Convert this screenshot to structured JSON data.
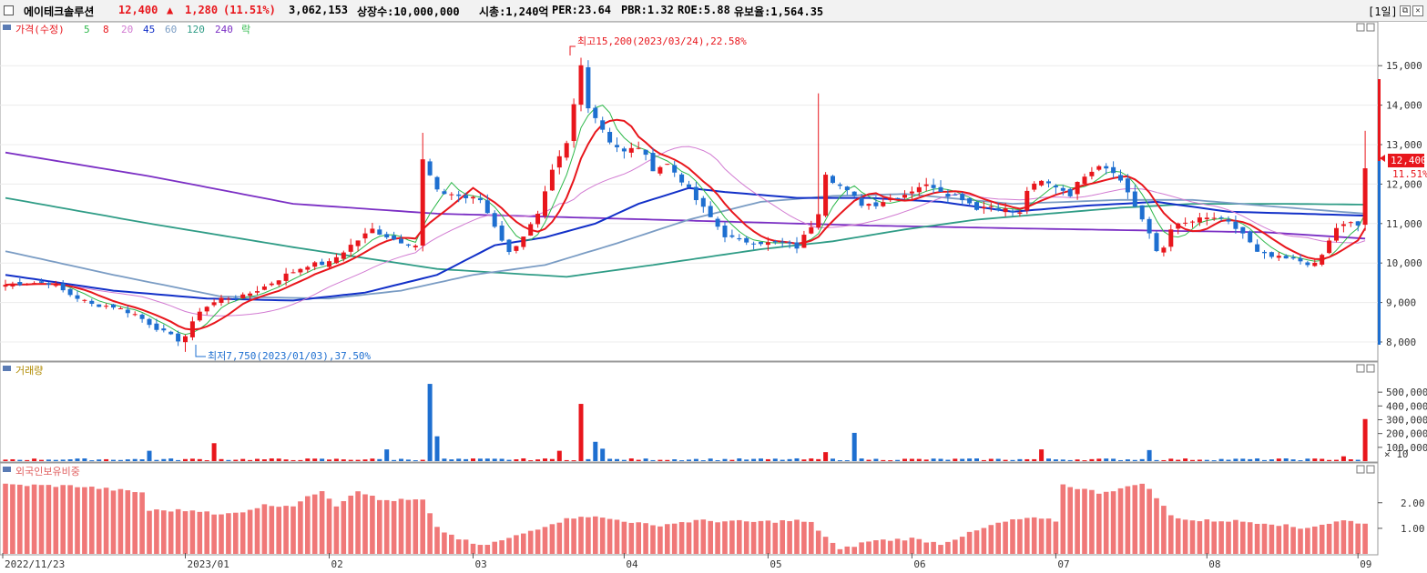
{
  "header": {
    "stock_name": "에이테크솔루션",
    "price": "12,400",
    "change_arrow": "▲",
    "change": "1,280",
    "change_pct": "(11.51%)",
    "volume": "3,062,153",
    "listed_shares": "상장수:10,000,000",
    "market_cap": "시총:1,240억",
    "per": "PER:23.64",
    "pbr": "PBR:1.32",
    "roe": "ROE:5.88",
    "reserve_ratio": "유보율:1,564.35",
    "period_button": "[1일]"
  },
  "colors": {
    "up": "#e8161c",
    "down": "#1e6fd0",
    "ma5": "#2db84a",
    "ma8": "#e8161c",
    "ma20": "#d27bd2",
    "ma45": "#1230c8",
    "ma60": "#7a9cc4",
    "ma120": "#2f9c86",
    "ma240": "#7b2fc4",
    "foreign_bar": "#f07878"
  },
  "chart_data": [
    {
      "type": "candlestick",
      "panel": "price",
      "legend": [
        "가격(수정)",
        "5",
        "8",
        "20",
        "45",
        "60",
        "120",
        "240",
        "락"
      ],
      "yticks": [
        "15,000",
        "14,000",
        "13,000",
        "12,000",
        "11,000",
        "10,000",
        "9,000",
        "8,000"
      ],
      "ylim": [
        7700,
        15650
      ],
      "xlabels": [
        "2022/11/23",
        "2023/01",
        "02",
        "03",
        "04",
        "05",
        "06",
        "07",
        "08",
        "09"
      ],
      "xlabel_days": [
        0,
        25,
        45,
        65,
        86,
        106,
        126,
        146,
        167,
        188
      ],
      "high_annotation": "최고15,200(2023/03/24),22.58%",
      "low_annotation": "최저7,750(2023/01/03),37.50%",
      "current_price_label": "12,400",
      "current_pct_label": "11.51%",
      "close_anchors": [
        [
          0,
          9450
        ],
        [
          3,
          9500
        ],
        [
          6,
          9500
        ],
        [
          9,
          9200
        ],
        [
          12,
          8950
        ],
        [
          15,
          8900
        ],
        [
          18,
          8700
        ],
        [
          21,
          8350
        ],
        [
          24,
          8050
        ],
        [
          25,
          8150
        ],
        [
          27,
          8800
        ],
        [
          30,
          9100
        ],
        [
          33,
          9150
        ],
        [
          36,
          9400
        ],
        [
          39,
          9700
        ],
        [
          42,
          9950
        ],
        [
          45,
          10000
        ],
        [
          48,
          10450
        ],
        [
          51,
          10850
        ],
        [
          54,
          10600
        ],
        [
          57,
          10450
        ],
        [
          58,
          12600
        ],
        [
          60,
          11800
        ],
        [
          62,
          11750
        ],
        [
          64,
          11650
        ],
        [
          66,
          11600
        ],
        [
          68,
          10950
        ],
        [
          70,
          10250
        ],
        [
          72,
          10700
        ],
        [
          74,
          11200
        ],
        [
          76,
          12300
        ],
        [
          78,
          13000
        ],
        [
          80,
          15000
        ],
        [
          81,
          14000
        ],
        [
          82,
          13700
        ],
        [
          84,
          13100
        ],
        [
          86,
          12800
        ],
        [
          88,
          12950
        ],
        [
          90,
          12400
        ],
        [
          92,
          12500
        ],
        [
          94,
          12100
        ],
        [
          96,
          11600
        ],
        [
          98,
          11150
        ],
        [
          100,
          10700
        ],
        [
          102,
          10550
        ],
        [
          104,
          10550
        ],
        [
          106,
          10500
        ],
        [
          108,
          10500
        ],
        [
          110,
          10400
        ],
        [
          112,
          10950
        ],
        [
          113,
          11300
        ],
        [
          114,
          12300
        ],
        [
          115,
          12100
        ],
        [
          117,
          11800
        ],
        [
          119,
          11500
        ],
        [
          121,
          11500
        ],
        [
          123,
          11650
        ],
        [
          125,
          11750
        ],
        [
          127,
          11950
        ],
        [
          129,
          11950
        ],
        [
          131,
          11750
        ],
        [
          133,
          11650
        ],
        [
          135,
          11400
        ],
        [
          137,
          11450
        ],
        [
          139,
          11350
        ],
        [
          141,
          11250
        ],
        [
          142,
          11850
        ],
        [
          144,
          12050
        ],
        [
          146,
          11950
        ],
        [
          148,
          11750
        ],
        [
          150,
          12250
        ],
        [
          152,
          12500
        ],
        [
          154,
          12350
        ],
        [
          156,
          11800
        ],
        [
          158,
          11100
        ],
        [
          160,
          10300
        ],
        [
          161,
          10400
        ],
        [
          162,
          10900
        ],
        [
          164,
          11000
        ],
        [
          166,
          11100
        ],
        [
          168,
          11150
        ],
        [
          170,
          11000
        ],
        [
          172,
          10750
        ],
        [
          174,
          10250
        ],
        [
          176,
          10150
        ],
        [
          178,
          10100
        ],
        [
          180,
          10050
        ],
        [
          182,
          9950
        ],
        [
          183,
          10200
        ],
        [
          185,
          10900
        ],
        [
          187,
          11000
        ],
        [
          188,
          10950
        ],
        [
          189,
          12400
        ]
      ],
      "ma_series": [
        {
          "name": "240",
          "values": [
            [
              0,
              12800
            ],
            [
              20,
              12200
            ],
            [
              40,
              11500
            ],
            [
              60,
              11250
            ],
            [
              80,
              11150
            ],
            [
              100,
              11050
            ],
            [
              120,
              10950
            ],
            [
              140,
              10880
            ],
            [
              160,
              10820
            ],
            [
              175,
              10780
            ],
            [
              189,
              10620
            ]
          ]
        },
        {
          "name": "120",
          "values": [
            [
              0,
              11650
            ],
            [
              20,
              11000
            ],
            [
              40,
              10400
            ],
            [
              60,
              9850
            ],
            [
              78,
              9650
            ],
            [
              90,
              9950
            ],
            [
              105,
              10350
            ],
            [
              115,
              10550
            ],
            [
              125,
              10850
            ],
            [
              135,
              11100
            ],
            [
              145,
              11250
            ],
            [
              155,
              11400
            ],
            [
              165,
              11500
            ],
            [
              178,
              11500
            ],
            [
              189,
              11480
            ]
          ]
        },
        {
          "name": "60",
          "values": [
            [
              0,
              10300
            ],
            [
              15,
              9700
            ],
            [
              30,
              9150
            ],
            [
              45,
              9100
            ],
            [
              55,
              9300
            ],
            [
              65,
              9700
            ],
            [
              75,
              9950
            ],
            [
              85,
              10500
            ],
            [
              95,
              11100
            ],
            [
              105,
              11550
            ],
            [
              115,
              11700
            ],
            [
              125,
              11750
            ],
            [
              140,
              11500
            ],
            [
              155,
              11600
            ],
            [
              165,
              11600
            ],
            [
              175,
              11450
            ],
            [
              189,
              11250
            ]
          ]
        },
        {
          "name": "45",
          "values": [
            [
              0,
              9700
            ],
            [
              15,
              9300
            ],
            [
              28,
              9100
            ],
            [
              40,
              9050
            ],
            [
              50,
              9250
            ],
            [
              60,
              9700
            ],
            [
              68,
              10450
            ],
            [
              75,
              10650
            ],
            [
              82,
              11000
            ],
            [
              88,
              11500
            ],
            [
              95,
              11900
            ],
            [
              100,
              11800
            ],
            [
              110,
              11650
            ],
            [
              120,
              11650
            ],
            [
              130,
              11550
            ],
            [
              140,
              11300
            ],
            [
              150,
              11450
            ],
            [
              160,
              11550
            ],
            [
              170,
              11300
            ],
            [
              180,
              11250
            ],
            [
              189,
              11200
            ]
          ]
        }
      ]
    },
    {
      "type": "bar",
      "panel": "volume",
      "legend": [
        "거래량"
      ],
      "yticks": [
        "500,000",
        "400,000",
        "300,000",
        "200,000",
        "100,000"
      ],
      "unit_label": "× 10",
      "ylim": [
        0,
        600000
      ],
      "spikes": [
        [
          20,
          75000
        ],
        [
          29,
          130000
        ],
        [
          53,
          85000
        ],
        [
          59,
          560000
        ],
        [
          60,
          180000
        ],
        [
          77,
          75000
        ],
        [
          80,
          415000
        ],
        [
          82,
          140000
        ],
        [
          83,
          90000
        ],
        [
          114,
          65000
        ],
        [
          118,
          205000
        ],
        [
          144,
          85000
        ],
        [
          159,
          80000
        ],
        [
          186,
          35000
        ],
        [
          189,
          305000
        ]
      ]
    },
    {
      "type": "bar",
      "panel": "foreign",
      "legend": [
        "외국인보유비중"
      ],
      "yticks": [
        "2.00",
        "1.00"
      ],
      "ylim": [
        0,
        3.2
      ],
      "anchors": [
        [
          0,
          2.7
        ],
        [
          10,
          2.65
        ],
        [
          19,
          2.4
        ],
        [
          20,
          1.7
        ],
        [
          28,
          1.7
        ],
        [
          29,
          1.5
        ],
        [
          32,
          1.6
        ],
        [
          36,
          1.9
        ],
        [
          40,
          1.9
        ],
        [
          44,
          2.5
        ],
        [
          46,
          1.9
        ],
        [
          49,
          2.5
        ],
        [
          52,
          2.1
        ],
        [
          58,
          2.1
        ],
        [
          60,
          1.0
        ],
        [
          63,
          0.6
        ],
        [
          66,
          0.3
        ],
        [
          70,
          0.6
        ],
        [
          76,
          1.2
        ],
        [
          80,
          1.5
        ],
        [
          86,
          1.3
        ],
        [
          90,
          1.1
        ],
        [
          96,
          1.3
        ],
        [
          104,
          1.25
        ],
        [
          110,
          1.3
        ],
        [
          112,
          1.2
        ],
        [
          116,
          0.15
        ],
        [
          120,
          0.5
        ],
        [
          126,
          0.6
        ],
        [
          130,
          0.4
        ],
        [
          134,
          0.8
        ],
        [
          138,
          1.2
        ],
        [
          142,
          1.4
        ],
        [
          146,
          1.3
        ],
        [
          147,
          2.7
        ],
        [
          152,
          2.4
        ],
        [
          156,
          2.6
        ],
        [
          158,
          2.8
        ],
        [
          160,
          2.2
        ],
        [
          162,
          1.5
        ],
        [
          165,
          1.3
        ],
        [
          170,
          1.3
        ],
        [
          176,
          1.2
        ],
        [
          180,
          1.0
        ],
        [
          186,
          1.3
        ],
        [
          189,
          1.2
        ]
      ]
    }
  ]
}
